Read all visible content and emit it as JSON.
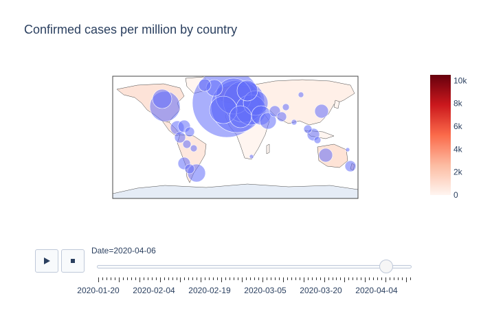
{
  "title": "Confirmed cases per million by country",
  "colorbar": {
    "ticks": [
      "0",
      "2k",
      "4k",
      "6k",
      "8k",
      "10k"
    ],
    "max": 10500,
    "colors": [
      "#fff5f0",
      "#fcbba1",
      "#fb6a4a",
      "#cb181d",
      "#67000d"
    ]
  },
  "bubble_color": "#636efa",
  "animation": {
    "current_label": "Date=2020-04-06",
    "play_icon": "play-icon",
    "stop_icon": "stop-icon",
    "progress": 0.92,
    "frame_count": 77,
    "tick_labels": [
      "2020-01-20",
      "2020-02-04",
      "2020-02-19",
      "2020-03-05",
      "2020-03-20",
      "2020-04-04"
    ]
  }
}
